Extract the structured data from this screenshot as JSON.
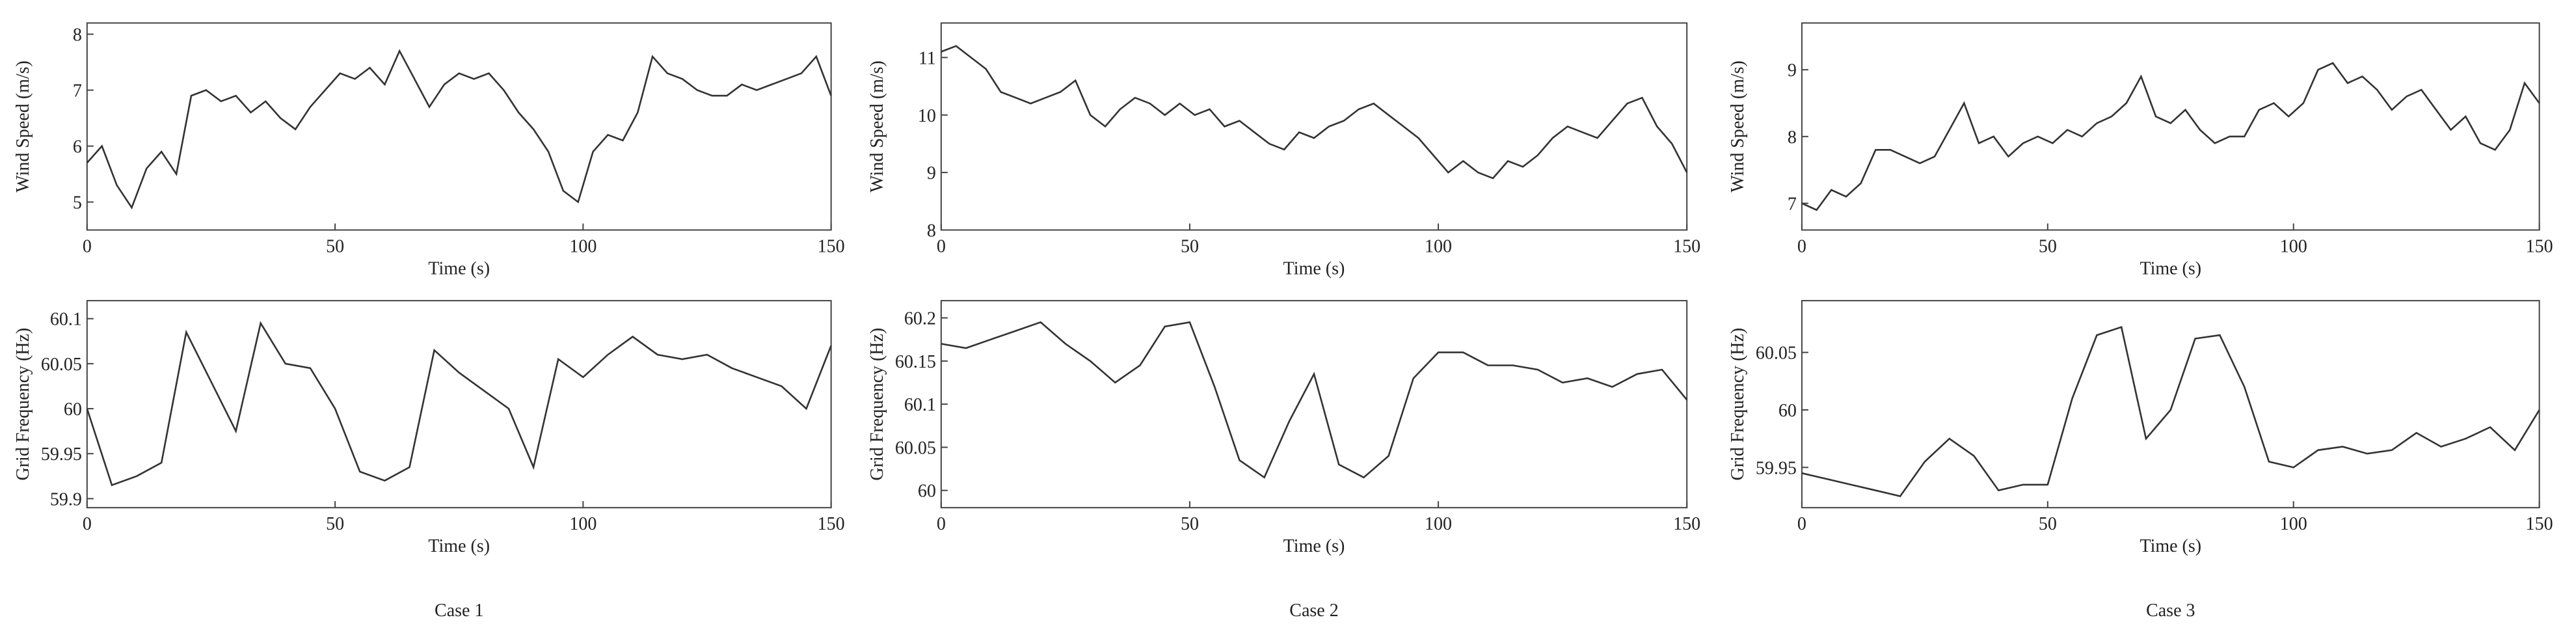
{
  "captions": [
    "Case 1",
    "Case 2",
    "Case 3"
  ],
  "chart_data": [
    {
      "type": "line",
      "xlabel": "Time (s)",
      "ylabel": "Wind Speed (m/s)",
      "color": "#333333",
      "x": [
        0,
        3,
        6,
        9,
        12,
        15,
        18,
        21,
        24,
        27,
        30,
        33,
        36,
        39,
        42,
        45,
        48,
        51,
        54,
        57,
        60,
        63,
        66,
        69,
        72,
        75,
        78,
        81,
        84,
        87,
        90,
        93,
        96,
        99,
        102,
        105,
        108,
        111,
        114,
        117,
        120,
        123,
        126,
        129,
        132,
        135,
        138,
        141,
        144,
        147,
        150
      ],
      "values": [
        5.7,
        6.0,
        5.3,
        4.9,
        5.6,
        5.9,
        5.5,
        6.9,
        7.0,
        6.8,
        6.9,
        6.6,
        6.8,
        6.5,
        6.3,
        6.7,
        7.0,
        7.3,
        7.2,
        7.4,
        7.1,
        7.7,
        7.2,
        6.7,
        7.1,
        7.3,
        7.2,
        7.3,
        7.0,
        6.6,
        6.3,
        5.9,
        5.2,
        5.0,
        5.9,
        6.2,
        6.1,
        6.6,
        7.6,
        7.3,
        7.2,
        7.0,
        6.9,
        6.9,
        7.1,
        7.0,
        7.1,
        7.2,
        7.3,
        7.6,
        6.9
      ],
      "xlim": [
        0,
        150
      ],
      "xticks": [
        0,
        50,
        100,
        150
      ],
      "ylim": [
        4.5,
        8.2
      ],
      "yticks": [
        5,
        6,
        7,
        8
      ]
    },
    {
      "type": "line",
      "xlabel": "Time (s)",
      "ylabel": "Grid Frequency (Hz)",
      "color": "#333333",
      "x": [
        0,
        5,
        10,
        15,
        20,
        25,
        30,
        35,
        40,
        45,
        50,
        55,
        60,
        65,
        70,
        75,
        80,
        85,
        90,
        95,
        100,
        105,
        110,
        115,
        120,
        125,
        130,
        135,
        140,
        145,
        150
      ],
      "values": [
        60.0,
        59.915,
        59.925,
        59.94,
        60.085,
        60.03,
        59.975,
        60.095,
        60.05,
        60.045,
        60.0,
        59.93,
        59.92,
        59.935,
        60.065,
        60.04,
        60.02,
        60.0,
        59.935,
        60.055,
        60.035,
        60.06,
        60.08,
        60.06,
        60.055,
        60.06,
        60.045,
        60.035,
        60.025,
        60.0,
        60.07
      ],
      "xlim": [
        0,
        150
      ],
      "xticks": [
        0,
        50,
        100,
        150
      ],
      "ylim": [
        59.89,
        60.12
      ],
      "yticks": [
        59.9,
        59.95,
        60,
        60.05,
        60.1
      ]
    },
    {
      "type": "line",
      "xlabel": "Time (s)",
      "ylabel": "Wind Speed (m/s)",
      "color": "#333333",
      "x": [
        0,
        3,
        6,
        9,
        12,
        15,
        18,
        21,
        24,
        27,
        30,
        33,
        36,
        39,
        42,
        45,
        48,
        51,
        54,
        57,
        60,
        63,
        66,
        69,
        72,
        75,
        78,
        81,
        84,
        87,
        90,
        93,
        96,
        99,
        102,
        105,
        108,
        111,
        114,
        117,
        120,
        123,
        126,
        129,
        132,
        135,
        138,
        141,
        144,
        147,
        150
      ],
      "values": [
        11.1,
        11.2,
        11.0,
        10.8,
        10.4,
        10.3,
        10.2,
        10.3,
        10.4,
        10.6,
        10.0,
        9.8,
        10.1,
        10.3,
        10.2,
        10.0,
        10.2,
        10.0,
        10.1,
        9.8,
        9.9,
        9.7,
        9.5,
        9.4,
        9.7,
        9.6,
        9.8,
        9.9,
        10.1,
        10.2,
        10.0,
        9.8,
        9.6,
        9.3,
        9.0,
        9.2,
        9.0,
        8.9,
        9.2,
        9.1,
        9.3,
        9.6,
        9.8,
        9.7,
        9.6,
        9.9,
        10.2,
        10.3,
        9.8,
        9.5,
        9.0
      ],
      "xlim": [
        0,
        150
      ],
      "xticks": [
        0,
        50,
        100,
        150
      ],
      "ylim": [
        8,
        11.6
      ],
      "yticks": [
        8,
        9,
        10,
        11
      ]
    },
    {
      "type": "line",
      "xlabel": "Time (s)",
      "ylabel": "Grid Frequency (Hz)",
      "color": "#333333",
      "x": [
        0,
        5,
        10,
        15,
        20,
        25,
        30,
        35,
        40,
        45,
        50,
        55,
        60,
        65,
        70,
        75,
        80,
        85,
        90,
        95,
        100,
        105,
        110,
        115,
        120,
        125,
        130,
        135,
        140,
        145,
        150
      ],
      "values": [
        60.17,
        60.165,
        60.175,
        60.185,
        60.195,
        60.17,
        60.15,
        60.125,
        60.145,
        60.19,
        60.195,
        60.12,
        60.035,
        60.015,
        60.08,
        60.135,
        60.03,
        60.015,
        60.04,
        60.13,
        60.16,
        60.16,
        60.145,
        60.145,
        60.14,
        60.125,
        60.13,
        60.12,
        60.135,
        60.14,
        60.105
      ],
      "xlim": [
        0,
        150
      ],
      "xticks": [
        0,
        50,
        100,
        150
      ],
      "ylim": [
        59.98,
        60.22
      ],
      "yticks": [
        60,
        60.05,
        60.1,
        60.15,
        60.2
      ]
    },
    {
      "type": "line",
      "xlabel": "Time (s)",
      "ylabel": "Wind Speed (m/s)",
      "color": "#333333",
      "x": [
        0,
        3,
        6,
        9,
        12,
        15,
        18,
        21,
        24,
        27,
        30,
        33,
        36,
        39,
        42,
        45,
        48,
        51,
        54,
        57,
        60,
        63,
        66,
        69,
        72,
        75,
        78,
        81,
        84,
        87,
        90,
        93,
        96,
        99,
        102,
        105,
        108,
        111,
        114,
        117,
        120,
        123,
        126,
        129,
        132,
        135,
        138,
        141,
        144,
        147,
        150
      ],
      "values": [
        7.0,
        6.9,
        7.2,
        7.1,
        7.3,
        7.8,
        7.8,
        7.7,
        7.6,
        7.7,
        8.1,
        8.5,
        7.9,
        8.0,
        7.7,
        7.9,
        8.0,
        7.9,
        8.1,
        8.0,
        8.2,
        8.3,
        8.5,
        8.9,
        8.3,
        8.2,
        8.4,
        8.1,
        7.9,
        8.0,
        8.0,
        8.4,
        8.5,
        8.3,
        8.5,
        9.0,
        9.1,
        8.8,
        8.9,
        8.7,
        8.4,
        8.6,
        8.7,
        8.4,
        8.1,
        8.3,
        7.9,
        7.8,
        8.1,
        8.8,
        8.5
      ],
      "xlim": [
        0,
        150
      ],
      "xticks": [
        0,
        50,
        100,
        150
      ],
      "ylim": [
        6.6,
        9.7
      ],
      "yticks": [
        7,
        8,
        9
      ]
    },
    {
      "type": "line",
      "xlabel": "Time (s)",
      "ylabel": "Grid Frequency (Hz)",
      "color": "#333333",
      "x": [
        0,
        5,
        10,
        15,
        20,
        25,
        30,
        35,
        40,
        45,
        50,
        55,
        60,
        65,
        70,
        75,
        80,
        85,
        90,
        95,
        100,
        105,
        110,
        115,
        120,
        125,
        130,
        135,
        140,
        145,
        150
      ],
      "values": [
        59.945,
        59.94,
        59.935,
        59.93,
        59.925,
        59.955,
        59.975,
        59.96,
        59.93,
        59.935,
        59.935,
        60.01,
        60.065,
        60.072,
        59.975,
        60.0,
        60.062,
        60.065,
        60.02,
        59.955,
        59.95,
        59.965,
        59.968,
        59.962,
        59.965,
        59.98,
        59.968,
        59.975,
        59.985,
        59.965,
        60.0
      ],
      "xlim": [
        0,
        150
      ],
      "xticks": [
        0,
        50,
        100,
        150
      ],
      "ylim": [
        59.915,
        60.095
      ],
      "yticks": [
        59.95,
        60,
        60.05
      ]
    }
  ]
}
